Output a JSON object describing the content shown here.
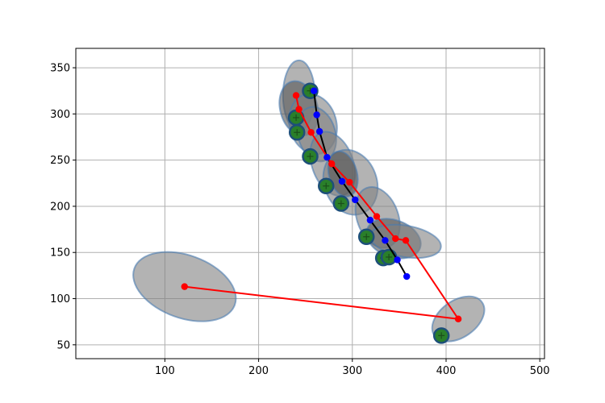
{
  "chart_data": {
    "type": "scatter",
    "title": "",
    "xlabel": "",
    "ylabel": "",
    "xlim": [
      5,
      505
    ],
    "ylim": [
      35,
      371
    ],
    "xticks": [
      100,
      200,
      300,
      400,
      500
    ],
    "yticks": [
      50,
      100,
      150,
      200,
      250,
      300,
      350
    ],
    "grid": true,
    "legend": "none",
    "ellipses": [
      {
        "cx": 243,
        "cy": 320,
        "rx": 17,
        "ry": 38,
        "angle": 0,
        "color": "#808080"
      },
      {
        "cx": 243,
        "cy": 306,
        "rx": 20,
        "ry": 30,
        "angle": -15,
        "color": "#555555"
      },
      {
        "cx": 258,
        "cy": 289,
        "rx": 25,
        "ry": 33,
        "angle": -15,
        "color": "#808080"
      },
      {
        "cx": 262,
        "cy": 278,
        "rx": 20,
        "ry": 30,
        "angle": -15,
        "color": "#808080"
      },
      {
        "cx": 279,
        "cy": 246,
        "rx": 22,
        "ry": 36,
        "angle": -20,
        "color": "#808080"
      },
      {
        "cx": 298,
        "cy": 226,
        "rx": 28,
        "ry": 36,
        "angle": -20,
        "color": "#808080"
      },
      {
        "cx": 290,
        "cy": 235,
        "rx": 15,
        "ry": 25,
        "angle": -15,
        "color": "#555555"
      },
      {
        "cx": 327,
        "cy": 188,
        "rx": 22,
        "ry": 34,
        "angle": -20,
        "color": "#808080"
      },
      {
        "cx": 344,
        "cy": 165,
        "rx": 30,
        "ry": 20,
        "angle": 20,
        "color": "#555555"
      },
      {
        "cx": 357,
        "cy": 162,
        "rx": 38,
        "ry": 17,
        "angle": 10,
        "color": "#808080"
      },
      {
        "cx": 121,
        "cy": 113,
        "rx": 57,
        "ry": 34,
        "angle": 20,
        "color": "#808080"
      },
      {
        "cx": 413,
        "cy": 78,
        "rx": 31,
        "ry": 20,
        "angle": -35,
        "color": "#808080"
      }
    ],
    "series": [
      {
        "color": "#ff0000",
        "x": [
          240,
          243,
          256,
          278,
          297,
          326,
          346,
          357,
          413,
          121
        ],
        "y": [
          320,
          305,
          280,
          246,
          226,
          189,
          165,
          163,
          78,
          113
        ]
      },
      {
        "color": "#000000",
        "x": [
          259,
          262,
          265,
          273,
          289,
          303,
          319,
          335,
          348,
          358
        ],
        "y": [
          325,
          299,
          281,
          253,
          227,
          207,
          185,
          163,
          142,
          124
        ]
      }
    ],
    "markers": [
      {
        "x": 255,
        "y": 325
      },
      {
        "x": 240,
        "y": 296
      },
      {
        "x": 241,
        "y": 280
      },
      {
        "x": 255,
        "y": 254
      },
      {
        "x": 272,
        "y": 222
      },
      {
        "x": 288,
        "y": 203
      },
      {
        "x": 315,
        "y": 167
      },
      {
        "x": 333,
        "y": 144
      },
      {
        "x": 339,
        "y": 145
      },
      {
        "x": 395,
        "y": 60
      }
    ]
  }
}
